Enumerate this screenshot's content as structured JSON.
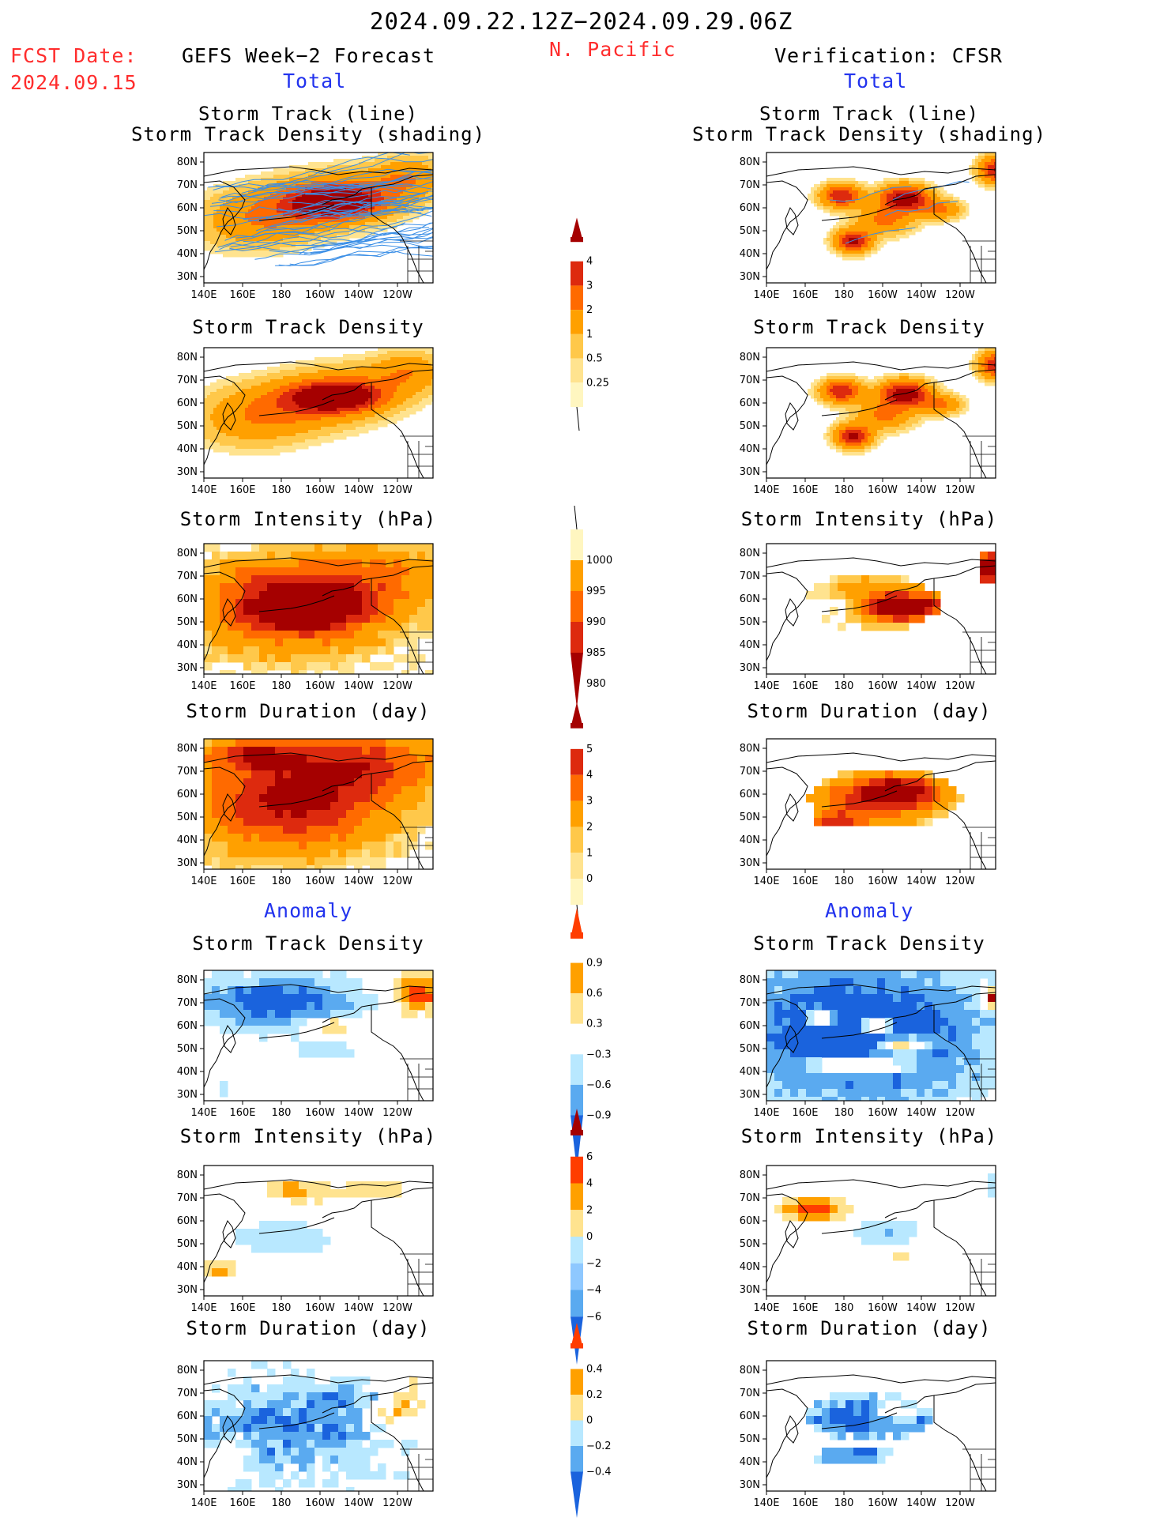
{
  "header": {
    "period": "2024.09.22.12Z−2024.09.29.06Z",
    "region": "N. Pacific",
    "fcst_label": "FCST Date:",
    "fcst_date": "2024.09.15",
    "left_title": "GEFS Week−2 Forecast",
    "right_title": "Verification: CFSR",
    "total_label": "Total",
    "anomaly_label": "Anomaly"
  },
  "panel_titles": {
    "track_line": "Storm Track (line)",
    "track_density_shading": "Storm Track Density (shading)",
    "density": "Storm Track Density",
    "intensity": "Storm Intensity (hPa)",
    "duration": "Storm Duration (day)"
  },
  "map_axes": {
    "lat_labels": [
      "80N",
      "70N",
      "60N",
      "50N",
      "40N",
      "30N"
    ],
    "lon_labels": [
      "140E",
      "160E",
      "180",
      "160W",
      "140W",
      "120W"
    ]
  },
  "chart_data": [
    {
      "type": "heatmap",
      "panel": "gefs-total-track",
      "title": "Storm Track (line) / Storm Track Density (shading)",
      "note": "forecast ensemble tracks with density shading, peak near 55N 150W"
    },
    {
      "type": "heatmap",
      "panel": "cfsr-total-track",
      "title": "Storm Track (line) / Storm Track Density (shading)",
      "note": "verification tracks, maxima near 60N 145W, 60N 175E, 40N 180"
    },
    {
      "type": "heatmap",
      "panel": "gefs-total-density",
      "title": "Storm Track Density"
    },
    {
      "type": "heatmap",
      "panel": "cfsr-total-density",
      "title": "Storm Track Density"
    },
    {
      "type": "heatmap",
      "panel": "gefs-total-intensity",
      "title": "Storm Intensity (hPa)"
    },
    {
      "type": "heatmap",
      "panel": "cfsr-total-intensity",
      "title": "Storm Intensity (hPa)"
    },
    {
      "type": "heatmap",
      "panel": "gefs-total-duration",
      "title": "Storm Duration (day)"
    },
    {
      "type": "heatmap",
      "panel": "cfsr-total-duration",
      "title": "Storm Duration (day)"
    },
    {
      "type": "heatmap",
      "panel": "gefs-anom-density",
      "title": "Storm Track Density"
    },
    {
      "type": "heatmap",
      "panel": "cfsr-anom-density",
      "title": "Storm Track Density"
    },
    {
      "type": "heatmap",
      "panel": "gefs-anom-intensity",
      "title": "Storm Intensity (hPa)"
    },
    {
      "type": "heatmap",
      "panel": "cfsr-anom-intensity",
      "title": "Storm Intensity (hPa)"
    },
    {
      "type": "heatmap",
      "panel": "gefs-anom-duration",
      "title": "Storm Duration (day)"
    },
    {
      "type": "heatmap",
      "panel": "cfsr-anom-duration",
      "title": "Storm Duration (day)"
    }
  ],
  "colorbars": {
    "density": {
      "labels": [
        "4",
        "3",
        "2",
        "1",
        "0.5",
        "0.25"
      ],
      "colors": [
        "#a50000",
        "#dd2a0e",
        "#ff6a00",
        "#ffa000",
        "#ffc84a",
        "#ffe38f",
        "#fff6c0"
      ]
    },
    "intensity": {
      "labels": [
        "1000",
        "995",
        "990",
        "985",
        "980"
      ],
      "colors": [
        "#fff6c0",
        "#ffa000",
        "#ff6a00",
        "#dd2a0e",
        "#a50000"
      ]
    },
    "duration": {
      "labels": [
        "5",
        "4",
        "3",
        "2",
        "1",
        "0"
      ],
      "colors": [
        "#a50000",
        "#dd2a0e",
        "#ff6a00",
        "#ffa000",
        "#ffc84a",
        "#ffe38f",
        "#fff6c0"
      ]
    },
    "anom_density": {
      "labels": [
        "0.9",
        "0.6",
        "0.3",
        "−0.3",
        "−0.6",
        "−0.9"
      ],
      "colors": [
        "#ff3d00",
        "#ffa000",
        "#ffe38f",
        "#ffffff",
        "#b8e8ff",
        "#5aaaf0",
        "#1a63dd"
      ]
    },
    "anom_intensity": {
      "labels": [
        "6",
        "4",
        "2",
        "0",
        "−2",
        "−4",
        "−6"
      ],
      "colors": [
        "#a50000",
        "#ff3d00",
        "#ffa000",
        "#ffe38f",
        "#b8e8ff",
        "#8ec8ff",
        "#5aaaf0",
        "#1a63dd"
      ]
    },
    "anom_duration": {
      "labels": [
        "0.4",
        "0.2",
        "0",
        "−0.2",
        "−0.4"
      ],
      "colors": [
        "#ff3d00",
        "#ffa000",
        "#ffe38f",
        "#b8e8ff",
        "#5aaaf0",
        "#1a63dd"
      ]
    }
  },
  "colors": {
    "red_text": "#ff2d2d",
    "blue_text": "#2233ee"
  }
}
